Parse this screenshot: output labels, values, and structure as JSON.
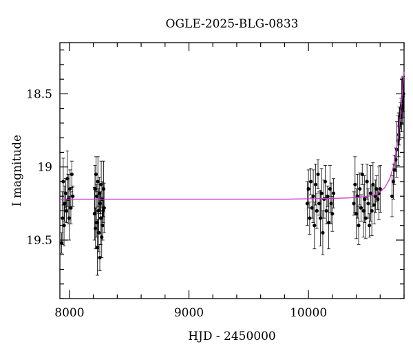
{
  "chart_data": {
    "type": "scatter",
    "title": "OGLE-2025-BLG-0833",
    "xlabel": "HJD - 2450000",
    "ylabel": "I magnitude",
    "xlim": [
      7920,
      10800
    ],
    "ylim": [
      19.9,
      18.15
    ],
    "y_inverted": true,
    "x_ticks": [
      8000,
      9000,
      10000
    ],
    "y_ticks": [
      18.5,
      19,
      19.5
    ],
    "x_tick_labels": [
      "8000",
      "9000",
      "10000"
    ],
    "y_tick_labels": [
      "18.5",
      "19",
      "19.5"
    ],
    "grid": false,
    "colors": {
      "points": "#000000",
      "model": "#cc33cc",
      "axes": "#000000"
    },
    "series": [
      {
        "kind": "observations",
        "error_bars": true,
        "x": [
          7935,
          7942,
          7948,
          7955,
          7960,
          7968,
          7975,
          7982,
          7990,
          7998,
          8005,
          8012,
          8020,
          8028,
          8210,
          8214,
          8218,
          8222,
          8226,
          8230,
          8234,
          8238,
          8242,
          8246,
          8250,
          8254,
          8258,
          8262,
          8266,
          8270,
          8274,
          8278,
          8282,
          8286,
          8290,
          9990,
          10000,
          10010,
          10020,
          10030,
          10040,
          10050,
          10060,
          10070,
          10080,
          10090,
          10100,
          10110,
          10120,
          10130,
          10140,
          10150,
          10160,
          10170,
          10180,
          10190,
          10200,
          10210,
          10380,
          10390,
          10400,
          10410,
          10420,
          10430,
          10440,
          10450,
          10460,
          10470,
          10480,
          10490,
          10500,
          10510,
          10520,
          10530,
          10540,
          10550,
          10560,
          10570,
          10580,
          10590,
          10600,
          10700,
          10710,
          10720,
          10730,
          10740,
          10750,
          10755,
          10760,
          10765,
          10770,
          10775,
          10780,
          10785,
          10790,
          10795
        ],
        "y": [
          19.52,
          19.35,
          19.1,
          19.4,
          19.25,
          19.18,
          19.3,
          19.08,
          19.22,
          19.35,
          19.15,
          19.28,
          19.05,
          19.2,
          19.32,
          19.15,
          19.42,
          19.05,
          19.38,
          19.2,
          19.55,
          19.1,
          19.3,
          19.45,
          19.18,
          19.62,
          19.25,
          19.35,
          19.12,
          19.48,
          19.22,
          19.4,
          19.3,
          19.15,
          19.28,
          19.25,
          19.15,
          19.35,
          19.1,
          19.28,
          19.2,
          19.4,
          19.12,
          19.3,
          19.05,
          19.25,
          19.35,
          19.18,
          19.45,
          19.22,
          19.1,
          19.3,
          19.2,
          19.38,
          19.15,
          19.25,
          19.32,
          19.18,
          19.25,
          19.12,
          19.32,
          19.2,
          19.4,
          19.15,
          19.28,
          19.05,
          19.3,
          19.22,
          19.35,
          19.1,
          19.25,
          19.4,
          19.18,
          19.3,
          19.12,
          19.26,
          19.2,
          19.15,
          19.22,
          19.18,
          19.15,
          19.2,
          19.1,
          19.02,
          18.95,
          18.88,
          18.82,
          18.78,
          18.72,
          18.7,
          18.65,
          18.6,
          18.58,
          18.55,
          18.52,
          18.5
        ]
      },
      {
        "kind": "model",
        "x": [
          7920,
          9000,
          9800,
          10200,
          10400,
          10500,
          10560,
          10600,
          10640,
          10680,
          10710,
          10740,
          10760,
          10780,
          10800
        ],
        "y": [
          19.22,
          19.22,
          19.22,
          19.215,
          19.21,
          19.2,
          19.19,
          19.17,
          19.14,
          19.08,
          19.0,
          18.86,
          18.72,
          18.55,
          18.35
        ]
      }
    ]
  }
}
